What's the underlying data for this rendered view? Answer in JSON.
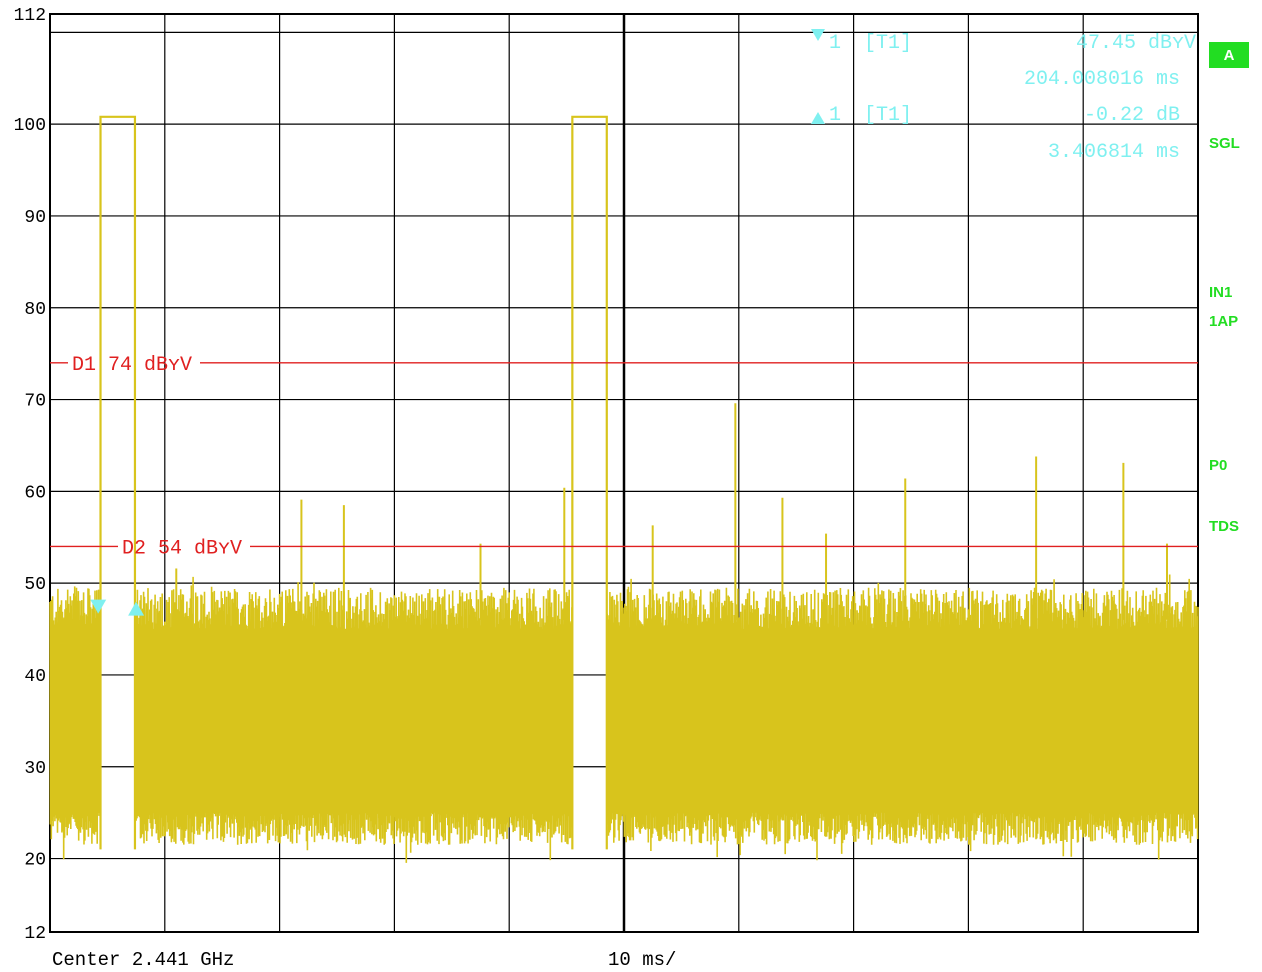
{
  "chart_data": {
    "type": "line",
    "y_ticks": [
      "112",
      "100",
      "90",
      "80",
      "70",
      "60",
      "50",
      "40",
      "30",
      "20",
      "12"
    ],
    "ylim": [
      12,
      112
    ],
    "xlim": [
      0,
      100
    ],
    "x_unit_per_div": "10 ms/",
    "center": "Center 2.441 GHz",
    "grid": true,
    "trace_color": "#d8c41c",
    "display_lines": [
      {
        "label": "D1",
        "value": 74,
        "text": "D1 74 dBʏV",
        "color": "#e02020"
      },
      {
        "label": "D2",
        "value": 54,
        "text": "D2 54 dBʏV",
        "color": "#e02020"
      }
    ],
    "markers": [
      {
        "symbol": "▼",
        "id": "1",
        "name": "[T1]",
        "value": "47.45 dBʏV",
        "time": "204.008016 ms",
        "x": 4.2,
        "y": 47.45
      },
      {
        "symbol": "▲",
        "id": "1",
        "name": "[T1]",
        "value": "-0.22 dB",
        "time": "3.406814 ms",
        "x": 7.5,
        "y": 47.23
      }
    ],
    "bursts": [
      {
        "x_start": 4.4,
        "x_end": 7.4,
        "level": 100.8
      },
      {
        "x_start": 45.5,
        "x_end": 48.5,
        "level": 100.8
      }
    ],
    "spikes": [
      {
        "x": 11.0,
        "y": 51.6
      },
      {
        "x": 21.9,
        "y": 59.1
      },
      {
        "x": 25.6,
        "y": 58.5
      },
      {
        "x": 37.5,
        "y": 54.3
      },
      {
        "x": 44.8,
        "y": 60.4
      },
      {
        "x": 52.5,
        "y": 56.3
      },
      {
        "x": 59.7,
        "y": 69.6
      },
      {
        "x": 63.8,
        "y": 59.3
      },
      {
        "x": 67.6,
        "y": 55.4
      },
      {
        "x": 74.5,
        "y": 61.4
      },
      {
        "x": 85.9,
        "y": 63.8
      },
      {
        "x": 93.5,
        "y": 63.1
      },
      {
        "x": 97.3,
        "y": 54.3
      }
    ]
  },
  "side_labels": {
    "badge": "A",
    "sgl": "SGL",
    "in1": "IN1",
    "ap": "1AP",
    "p0": "P0",
    "tds": "TDS",
    "badge_color": "#22dd22"
  }
}
